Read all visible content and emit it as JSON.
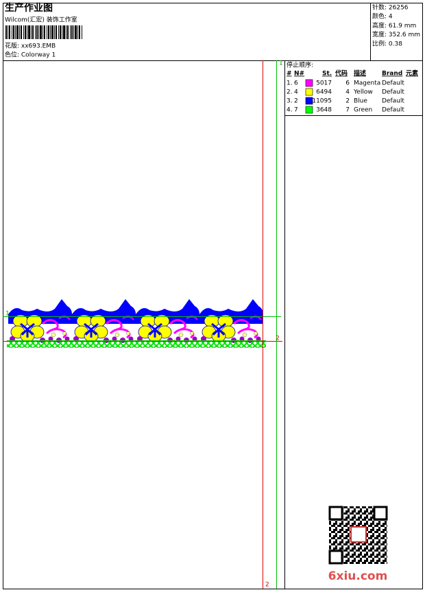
{
  "header": {
    "title": "生产作业图",
    "studio": "Wilcom(汇宏) 装饰工作室",
    "pattern": "花版: xx693.EMB",
    "colorway": "色位: Colorway 1"
  },
  "stats": [
    "针数: 26256",
    "颜色: 4",
    "高度: 61.9 mm",
    "宽度: 352.6 mm",
    "比例: 0.38"
  ],
  "stop_sequence": {
    "title": "停止顺序:",
    "columns": [
      "#",
      "N#",
      "St.",
      "代码",
      "描述",
      "Brand",
      "元素"
    ],
    "rows": [
      {
        "num": "1.",
        "needle": "6",
        "color": "#ff00ff",
        "stitches": "5017",
        "code": "6",
        "description": "Magenta",
        "brand": "Default"
      },
      {
        "num": "2.",
        "needle": "4",
        "color": "#ffff00",
        "stitches": "6494",
        "code": "4",
        "description": "Yellow",
        "brand": "Default"
      },
      {
        "num": "3.",
        "needle": "2",
        "color": "#0000ff",
        "stitches": "11095",
        "code": "2",
        "description": "Blue",
        "brand": "Default"
      },
      {
        "num": "4.",
        "needle": "7",
        "color": "#00ff00",
        "stitches": "3648",
        "code": "7",
        "description": "Green",
        "brand": "Default"
      }
    ]
  },
  "guides": {
    "left_h": "1",
    "right_h": "2",
    "top_v": "1",
    "bottom_v": "2"
  },
  "watermark": "6xiu.com"
}
